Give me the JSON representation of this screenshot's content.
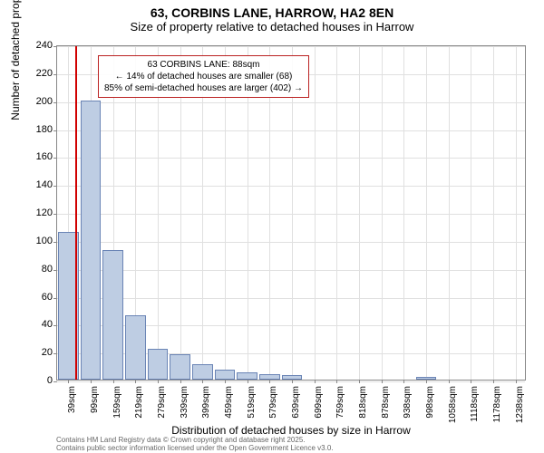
{
  "header": {
    "title": "63, CORBINS LANE, HARROW, HA2 8EN",
    "subtitle": "Size of property relative to detached houses in Harrow"
  },
  "chart": {
    "type": "bar",
    "ylabel": "Number of detached properties",
    "xlabel": "Distribution of detached houses by size in Harrow",
    "ylim": [
      0,
      240
    ],
    "yticks": [
      0,
      20,
      40,
      60,
      80,
      100,
      120,
      140,
      160,
      180,
      200,
      220,
      240
    ],
    "xtick_labels": [
      "39sqm",
      "99sqm",
      "159sqm",
      "219sqm",
      "279sqm",
      "339sqm",
      "399sqm",
      "459sqm",
      "519sqm",
      "579sqm",
      "639sqm",
      "699sqm",
      "759sqm",
      "818sqm",
      "878sqm",
      "938sqm",
      "998sqm",
      "1058sqm",
      "1118sqm",
      "1178sqm",
      "1238sqm"
    ],
    "bar_color": "#becde3",
    "bar_border": "#6a84b5",
    "background_color": "#ffffff",
    "grid_color": "#e0e0e0",
    "values": [
      106,
      200,
      93,
      46,
      22,
      18,
      11,
      7,
      5,
      4,
      3,
      0,
      0,
      0,
      0,
      0,
      2,
      0,
      0,
      0,
      0
    ],
    "refline": {
      "position_index": 0.82,
      "color": "#d00000"
    },
    "annotation": {
      "line1": "63 CORBINS LANE: 88sqm",
      "line2": "← 14% of detached houses are smaller (68)",
      "line3": "85% of semi-detached houses are larger (402) →",
      "border_color": "#bb2222"
    }
  },
  "footer": {
    "line1": "Contains HM Land Registry data © Crown copyright and database right 2025.",
    "line2": "Contains public sector information licensed under the Open Government Licence v3.0."
  }
}
